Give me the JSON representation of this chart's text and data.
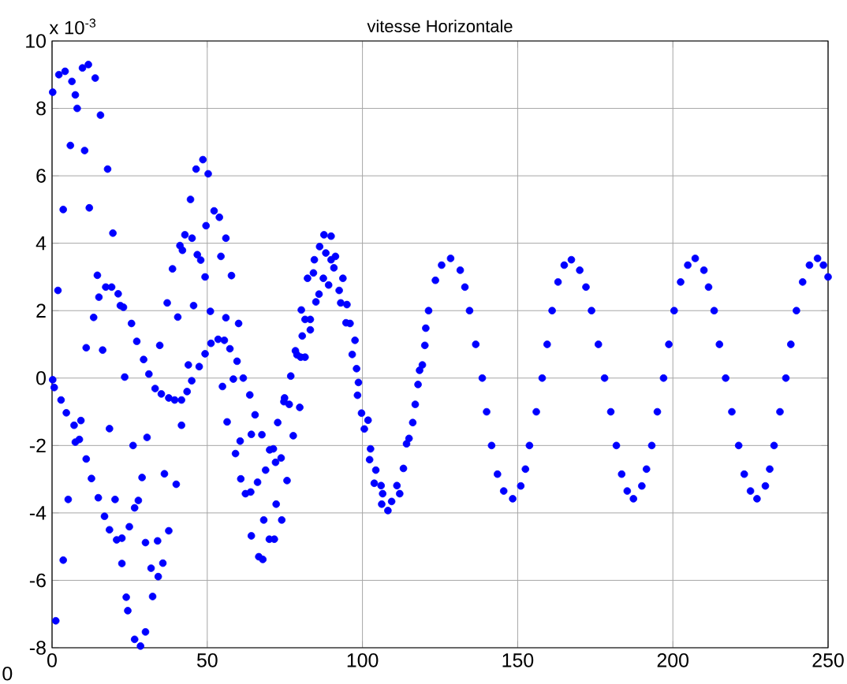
{
  "chart_data": {
    "type": "scatter",
    "title": "vitesse Horizontale",
    "x": [
      0.2,
      2.2,
      4.2,
      6.4,
      7.5,
      8.1,
      9.8,
      11.7,
      13.9,
      15.6,
      17.9,
      19.6,
      5.9,
      10.5,
      3.6,
      12.0,
      1.9,
      14.6,
      15.1,
      17.3,
      19.2,
      21.3,
      22,
      13.4,
      11,
      16.3,
      23.4,
      0.2,
      0.7,
      2.9,
      4.6,
      7.1,
      7.5,
      8.8,
      9.3,
      11,
      12.7,
      14.9,
      5.2,
      18.5,
      20.3,
      16.9,
      18.5,
      20.8,
      22.5,
      22.5,
      3.6,
      23.9,
      1.2,
      23,
      25.6,
      27.3,
      29.5,
      31.2,
      33.2,
      35.2,
      37.6,
      39.5,
      41.7,
      43.5,
      45,
      43.9,
      47.4,
      49.3,
      51.2,
      53.5,
      55.5,
      34.7,
      40.5,
      37.1,
      45.6,
      51,
      38.8,
      41.2,
      42.8,
      45.1,
      42,
      46.8,
      47.9,
      49.3,
      44.6,
      46.4,
      48.6,
      50.3,
      49.6,
      52.2,
      53.9,
      54.4,
      56,
      56,
      54.9,
      56.4,
      41.7,
      30.6,
      26.1,
      29,
      36.2,
      40,
      27.8,
      26.6,
      24.9,
      30.1,
      34,
      37.6,
      31.9,
      35.7,
      34.2,
      32.4,
      24.4,
      26.6,
      28.5,
      30.1,
      57.8,
      60.1,
      57.3,
      59.6,
      58.4,
      61.6,
      63.7,
      65.4,
      60.6,
      64.2,
      67.6,
      59.1,
      70.1,
      71.3,
      60.8,
      66.2,
      68.8,
      72,
      73.8,
      75.7,
      62.3,
      64,
      68.2,
      74,
      64.2,
      72.2,
      70,
      71.6,
      66.6,
      67.9,
      72.7,
      74.7,
      76.4,
      77.7,
      79.8,
      74.9,
      76.9,
      78.9,
      80.1,
      81.5,
      78.4,
      80.6,
      81.5,
      83.2,
      80.3,
      83.2,
      82.3,
      84.2,
      85,
      86,
      84.5,
      86.2,
      87.6,
      89.9,
      88.2,
      89.9,
      91.3,
      87.4,
      89.1,
      90.8,
      92.5,
      93.7,
      93,
      95,
      94.7,
      96,
      97.6,
      96.7,
      98.1,
      98.7,
      98.4,
      99.7,
      100.6,
      101.8,
      102.6,
      102.3,
      104.3,
      103.8,
      106,
      106.5,
      106.2,
      108.2,
      109.4,
      111.1,
      112,
      113.2,
      114.2,
      115,
      116.2,
      117,
      117.9,
      118.4,
      119.3,
      120.1,
      120.4,
      121.3,
      123.5,
      125.5,
      128.4,
      131.5,
      133,
      134.5,
      136.5,
      138.6,
      140,
      141.6,
      143.5,
      145.5,
      148.4,
      151,
      152.5,
      153.8,
      156,
      157.9,
      159.5,
      161.1,
      163,
      165,
      167.3,
      170,
      172,
      173.8,
      176,
      178,
      180,
      181.8,
      183.5,
      185.3,
      187.3,
      190,
      191.5,
      193.2,
      195,
      197,
      198.7,
      200.4,
      202.5,
      204.8,
      207.2,
      210,
      211.5,
      213.3,
      215,
      217,
      219,
      221.2,
      223,
      225,
      227.1,
      229.8,
      231.2,
      232.6,
      234.5,
      236.4,
      238,
      239.8,
      241.8,
      244,
      246.6,
      248.5,
      250
    ],
    "values": [
      8.48,
      9.0,
      9.1,
      8.8,
      8.4,
      8.0,
      9.2,
      9.3,
      8.9,
      7.8,
      6.2,
      4.3,
      6.9,
      6.75,
      5.0,
      5.05,
      2.6,
      3.05,
      2.4,
      2.7,
      2.7,
      2.5,
      2.15,
      1.8,
      0.9,
      0.83,
      0.03,
      -0.05,
      -0.28,
      -0.65,
      -1.03,
      -1.4,
      -1.9,
      -1.82,
      -1.26,
      -2.4,
      -2.98,
      -3.55,
      -3.6,
      -1.5,
      -3.6,
      -4.1,
      -4.5,
      -4.8,
      -4.75,
      -5.5,
      -5.4,
      -6.5,
      -7.2,
      2.1,
      1.62,
      1.09,
      0.55,
      0.12,
      -0.31,
      -0.47,
      -0.59,
      -0.65,
      -0.65,
      -0.4,
      -0.08,
      0.39,
      0.34,
      0.72,
      1.03,
      1.15,
      1.12,
      0.97,
      1.81,
      2.23,
      2.15,
      1.98,
      3.24,
      3.93,
      4.25,
      4.15,
      3.79,
      3.66,
      3.5,
      3.0,
      5.3,
      6.2,
      6.48,
      6.06,
      4.52,
      4.96,
      4.77,
      3.61,
      4.15,
      1.79,
      -0.25,
      -1.3,
      -1.4,
      -1.76,
      -2.0,
      -2.95,
      -2.84,
      -3.15,
      -3.63,
      -3.85,
      -4.41,
      -4.88,
      -4.83,
      -4.53,
      -5.64,
      -5.49,
      -5.89,
      -6.48,
      -6.9,
      -7.75,
      -7.95,
      -7.53,
      3.04,
      1.62,
      0.87,
      0.5,
      -0.03,
      0,
      -0.5,
      -1.09,
      -1.87,
      -1.67,
      -1.68,
      -2.24,
      -2.13,
      -2.1,
      -2.99,
      -3.09,
      -2.73,
      -2.5,
      -2.37,
      -3.04,
      -3.43,
      -3.38,
      -4.21,
      -4.21,
      -4.68,
      -3.74,
      -4.78,
      -4.78,
      -5.3,
      -5.38,
      -1.32,
      -0.7,
      -0.78,
      -1.71,
      -0.87,
      -0.59,
      0.06,
      0.69,
      0.62,
      0.62,
      0.81,
      1.25,
      1.74,
      1.74,
      2.02,
      1.43,
      2.96,
      3.12,
      2.26,
      2.49,
      3.51,
      3.9,
      4.25,
      4.21,
      3.71,
      3.51,
      3.61,
      2.96,
      2.76,
      3.27,
      2.6,
      2.96,
      2.23,
      2.18,
      1.64,
      1.62,
      1.12,
      0.7,
      0.28,
      -0.13,
      -0.51,
      -1.04,
      -1.51,
      -1.25,
      -2.1,
      -2.42,
      -2.73,
      -3.12,
      -3.19,
      -3.43,
      -3.74,
      -3.93,
      -3.66,
      -3.19,
      -3.43,
      -2.68,
      -1.95,
      -1.79,
      -1.32,
      -0.78,
      -0.19,
      0.23,
      0.39,
      0.97,
      1.48,
      2.0,
      2.9,
      3.35,
      3.55,
      3.2,
      2.7,
      2.0,
      1.0,
      0,
      -1.0,
      -2.0,
      -2.85,
      -3.35,
      -3.58,
      -3.2,
      -2.7,
      -2.0,
      -1.0,
      0,
      1.0,
      2.0,
      2.85,
      3.35,
      3.51,
      3.2,
      2.7,
      2.0,
      1.0,
      0,
      -1.0,
      -2.0,
      -2.85,
      -3.35,
      -3.58,
      -3.2,
      -2.7,
      -2.0,
      -1.0,
      0,
      1.0,
      2.0,
      2.85,
      3.35,
      3.55,
      3.2,
      2.7,
      2.0,
      1.0,
      0,
      -1.0,
      -2.0,
      -2.85,
      -3.35,
      -3.58,
      -3.2,
      -2.7,
      -2.0,
      -1.0,
      0,
      1.0,
      2.0,
      2.85,
      3.35,
      3.55,
      3.35,
      3.0
    ],
    "color": "#0000ff",
    "grid": true,
    "xlim": [
      0,
      250
    ],
    "xticks": [
      0,
      50,
      100,
      150,
      200,
      250
    ],
    "ylim": [
      -8,
      10
    ],
    "yticks": [
      -8,
      -6,
      -4,
      -2,
      0,
      2,
      4,
      6,
      8,
      10
    ],
    "annotations": [
      "x 10$^{-3}$",
      "0"
    ]
  }
}
